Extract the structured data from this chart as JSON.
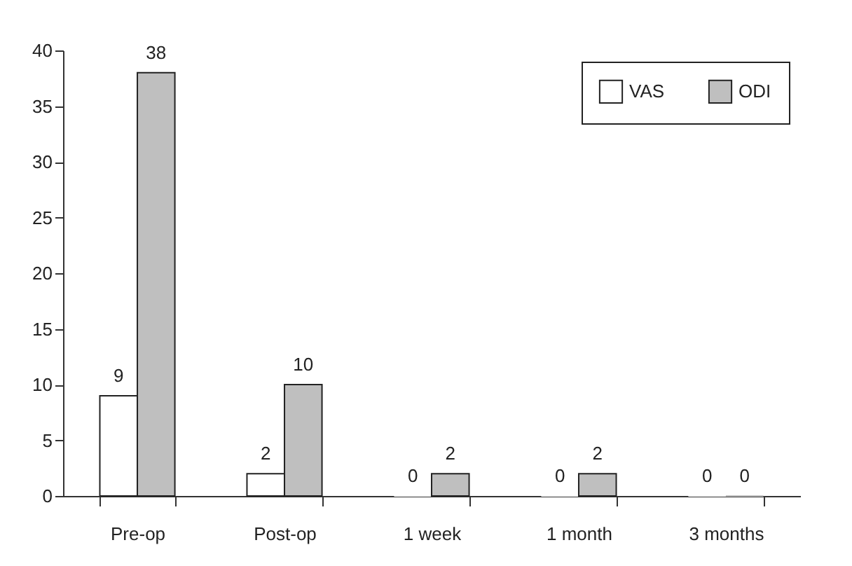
{
  "chart_data": {
    "type": "bar",
    "categories": [
      "Pre-op",
      "Post-op",
      "1 week",
      "1 month",
      "3 months"
    ],
    "series": [
      {
        "name": "VAS",
        "color": "#ffffff",
        "values": [
          9,
          2,
          0,
          0,
          0
        ]
      },
      {
        "name": "ODI",
        "color": "#bfbfbf",
        "values": [
          38,
          10,
          2,
          2,
          0
        ]
      }
    ],
    "ylim": [
      0,
      40
    ],
    "yticks": [
      0,
      5,
      10,
      15,
      20,
      25,
      30,
      35,
      40
    ],
    "grid": false,
    "legend": "top right",
    "data_labels": true
  }
}
